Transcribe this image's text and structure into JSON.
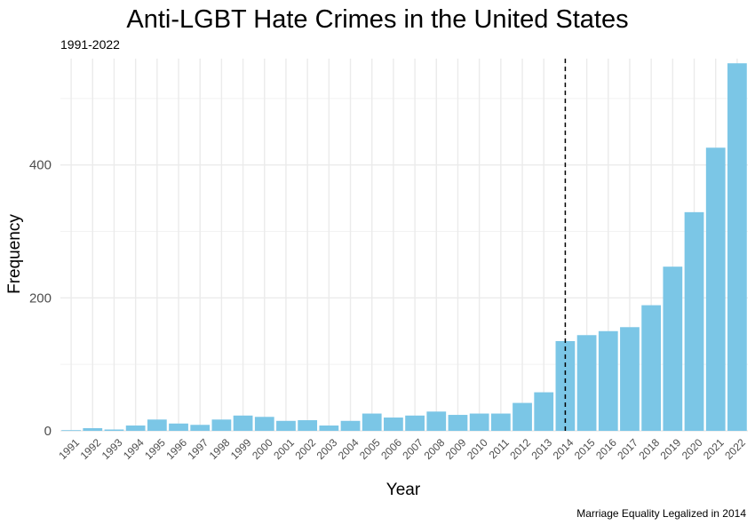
{
  "chart_data": {
    "type": "bar",
    "title": "Anti-LGBT Hate Crimes in the United States",
    "subtitle": "1991-2022",
    "xlabel": "Year",
    "ylabel": "Frequency",
    "caption": "Marriage Equality Legalized in 2014",
    "categories": [
      "1991",
      "1992",
      "1993",
      "1994",
      "1995",
      "1996",
      "1997",
      "1998",
      "1999",
      "2000",
      "2001",
      "2002",
      "2003",
      "2004",
      "2005",
      "2006",
      "2007",
      "2008",
      "2009",
      "2010",
      "2011",
      "2012",
      "2013",
      "2014",
      "2015",
      "2016",
      "2017",
      "2018",
      "2019",
      "2020",
      "2021",
      "2022"
    ],
    "values": [
      1,
      4,
      2,
      8,
      17,
      11,
      9,
      17,
      23,
      21,
      15,
      16,
      8,
      15,
      26,
      20,
      23,
      29,
      24,
      26,
      26,
      42,
      58,
      135,
      144,
      150,
      156,
      189,
      247,
      329,
      426,
      553
    ],
    "reference_line": {
      "x": "2014",
      "style": "dashed"
    },
    "ylim": [
      0,
      560
    ],
    "yticks": [
      0,
      200,
      400
    ],
    "grid": true,
    "bar_color": "#7BC6E6",
    "legend": "none"
  }
}
